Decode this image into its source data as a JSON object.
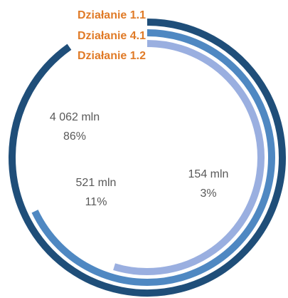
{
  "chart_data": {
    "type": "radial-bar",
    "series": [
      {
        "name": "Działanie 1.1",
        "color": "#1f4e79",
        "values": [
          4062
        ],
        "value_labels": [
          "4 062 mln"
        ],
        "percent": 86,
        "percent_label": "86%"
      },
      {
        "name": "Działanie 4.1",
        "color": "#4f88c2",
        "values": [
          521
        ],
        "value_labels": [
          "521 mln"
        ],
        "percent": 11,
        "percent_label": "11%"
      },
      {
        "name": "Działanie 1.2",
        "color": "#9aafe0",
        "values": [
          154
        ],
        "value_labels": [
          "154 mln"
        ],
        "percent": 3,
        "percent_label": "3%"
      }
    ],
    "xlim": [
      1,
      10000
    ],
    "log_scale": true,
    "legend_color": "#e07b28"
  }
}
